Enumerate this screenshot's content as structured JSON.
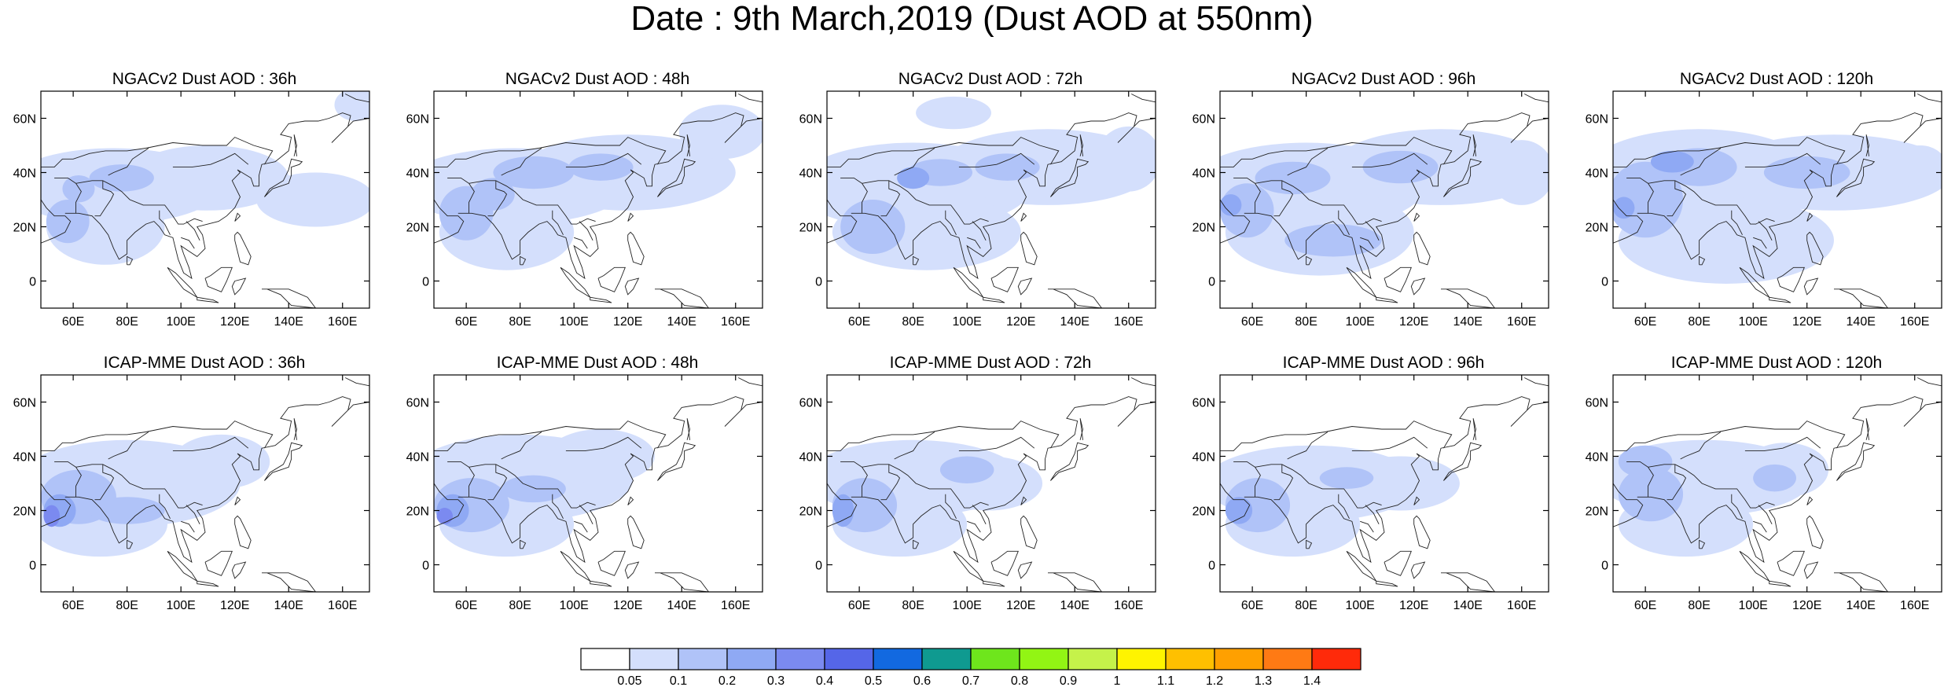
{
  "title": "Date : 9th March,2019 (Dust AOD at 550nm)",
  "map": {
    "lon_range": [
      48,
      170
    ],
    "lat_range": [
      -10,
      70
    ],
    "lon_ticks": [
      "60E",
      "80E",
      "100E",
      "120E",
      "140E",
      "160E"
    ],
    "lat_ticks": [
      "60N",
      "40N",
      "20N",
      "0"
    ],
    "lon_tick_values": [
      60,
      80,
      100,
      120,
      140,
      160
    ],
    "lat_tick_values": [
      60,
      40,
      20,
      0
    ]
  },
  "panels": [
    {
      "title": "NGACv2 Dust AOD : 36h",
      "model": "NGACv2",
      "lead": "36h",
      "blobs": [
        [
          75,
          35,
          40,
          14,
          1
        ],
        [
          72,
          20,
          22,
          14,
          1
        ],
        [
          110,
          38,
          30,
          12,
          1
        ],
        [
          150,
          30,
          22,
          10,
          1
        ],
        [
          165,
          65,
          8,
          6,
          1
        ],
        [
          58,
          22,
          8,
          8,
          2
        ],
        [
          78,
          38,
          12,
          5,
          2
        ],
        [
          62,
          34,
          6,
          5,
          2
        ]
      ]
    },
    {
      "title": "NGACv2 Dust AOD : 48h",
      "model": "NGACv2",
      "lead": "48h",
      "blobs": [
        [
          78,
          35,
          42,
          14,
          1
        ],
        [
          75,
          18,
          25,
          14,
          1
        ],
        [
          120,
          40,
          40,
          14,
          1
        ],
        [
          155,
          55,
          16,
          10,
          1
        ],
        [
          60,
          25,
          10,
          10,
          2
        ],
        [
          85,
          40,
          15,
          6,
          2
        ],
        [
          110,
          42,
          12,
          5,
          2
        ],
        [
          70,
          32,
          8,
          6,
          2
        ]
      ]
    },
    {
      "title": "NGACv2 Dust AOD : 72h",
      "model": "NGACv2",
      "lead": "72h",
      "blobs": [
        [
          80,
          35,
          44,
          16,
          1
        ],
        [
          85,
          18,
          35,
          14,
          1
        ],
        [
          130,
          42,
          40,
          14,
          1
        ],
        [
          160,
          45,
          12,
          12,
          1
        ],
        [
          95,
          62,
          14,
          6,
          1
        ],
        [
          65,
          20,
          12,
          10,
          2
        ],
        [
          90,
          40,
          12,
          5,
          2
        ],
        [
          80,
          38,
          6,
          4,
          3
        ],
        [
          115,
          42,
          12,
          5,
          2
        ]
      ]
    },
    {
      "title": "NGACv2 Dust AOD : 96h",
      "model": "NGACv2",
      "lead": "96h",
      "blobs": [
        [
          80,
          35,
          44,
          16,
          1
        ],
        [
          85,
          18,
          35,
          16,
          1
        ],
        [
          130,
          42,
          40,
          14,
          1
        ],
        [
          160,
          40,
          12,
          12,
          1
        ],
        [
          58,
          26,
          10,
          10,
          2
        ],
        [
          75,
          38,
          14,
          6,
          2
        ],
        [
          52,
          28,
          4,
          4,
          3
        ],
        [
          90,
          15,
          18,
          6,
          2
        ],
        [
          115,
          42,
          14,
          6,
          2
        ]
      ]
    },
    {
      "title": "NGACv2 Dust AOD : 120h",
      "model": "NGACv2",
      "lead": "120h",
      "blobs": [
        [
          80,
          38,
          44,
          18,
          1
        ],
        [
          90,
          15,
          40,
          16,
          1
        ],
        [
          130,
          40,
          44,
          14,
          1
        ],
        [
          162,
          42,
          10,
          8,
          1
        ],
        [
          60,
          30,
          14,
          14,
          2
        ],
        [
          80,
          42,
          14,
          7,
          2
        ],
        [
          52,
          27,
          4,
          4,
          3
        ],
        [
          70,
          44,
          8,
          4,
          3
        ],
        [
          120,
          40,
          16,
          6,
          2
        ]
      ]
    },
    {
      "title": "ICAP-MME Dust AOD : 36h",
      "model": "ICAP-MME",
      "lead": "36h",
      "blobs": [
        [
          80,
          30,
          42,
          16,
          1
        ],
        [
          70,
          15,
          25,
          12,
          1
        ],
        [
          115,
          38,
          18,
          10,
          1
        ],
        [
          62,
          25,
          14,
          10,
          2
        ],
        [
          55,
          20,
          6,
          6,
          3
        ],
        [
          52,
          18,
          3,
          4,
          4
        ],
        [
          80,
          20,
          14,
          5,
          2
        ]
      ]
    },
    {
      "title": "ICAP-MME Dust AOD : 48h",
      "model": "ICAP-MME",
      "lead": "48h",
      "blobs": [
        [
          80,
          32,
          42,
          16,
          1
        ],
        [
          75,
          15,
          25,
          12,
          1
        ],
        [
          110,
          40,
          20,
          10,
          1
        ],
        [
          62,
          22,
          14,
          10,
          2
        ],
        [
          55,
          20,
          6,
          6,
          3
        ],
        [
          52,
          18,
          3,
          3,
          4
        ],
        [
          85,
          28,
          12,
          5,
          2
        ]
      ]
    },
    {
      "title": "ICAP-MME Dust AOD : 72h",
      "model": "ICAP-MME",
      "lead": "72h",
      "blobs": [
        [
          80,
          32,
          40,
          14,
          1
        ],
        [
          75,
          15,
          25,
          12,
          1
        ],
        [
          108,
          30,
          20,
          10,
          1
        ],
        [
          62,
          22,
          12,
          10,
          2
        ],
        [
          54,
          20,
          4,
          6,
          3
        ],
        [
          100,
          35,
          10,
          5,
          2
        ]
      ]
    },
    {
      "title": "ICAP-MME Dust AOD : 96h",
      "model": "ICAP-MME",
      "lead": "96h",
      "blobs": [
        [
          82,
          30,
          40,
          14,
          1
        ],
        [
          75,
          15,
          25,
          12,
          1
        ],
        [
          115,
          30,
          22,
          10,
          1
        ],
        [
          62,
          22,
          12,
          10,
          2
        ],
        [
          55,
          20,
          5,
          5,
          3
        ],
        [
          95,
          32,
          10,
          4,
          2
        ]
      ]
    },
    {
      "title": "ICAP-MME Dust AOD : 120h",
      "model": "ICAP-MME",
      "lead": "120h",
      "blobs": [
        [
          82,
          32,
          40,
          14,
          1
        ],
        [
          75,
          15,
          25,
          12,
          1
        ],
        [
          112,
          35,
          16,
          10,
          1
        ],
        [
          62,
          26,
          12,
          10,
          2
        ],
        [
          60,
          38,
          10,
          6,
          2
        ],
        [
          108,
          32,
          8,
          5,
          2
        ]
      ]
    }
  ],
  "colorbar": {
    "levels": [
      "0.05",
      "0.1",
      "0.2",
      "0.3",
      "0.4",
      "0.5",
      "0.6",
      "0.7",
      "0.8",
      "0.9",
      "1",
      "1.1",
      "1.2",
      "1.3",
      "1.4"
    ],
    "colors": [
      "#ffffff",
      "#d4dffc",
      "#b0c3f8",
      "#8fa9f4",
      "#7b8af0",
      "#5566e8",
      "#1269e0",
      "#0f9a90",
      "#6ee61c",
      "#92f514",
      "#c5f24a",
      "#fff400",
      "#ffc000",
      "#ffa000",
      "#ff7a14",
      "#ff2a0a"
    ]
  }
}
